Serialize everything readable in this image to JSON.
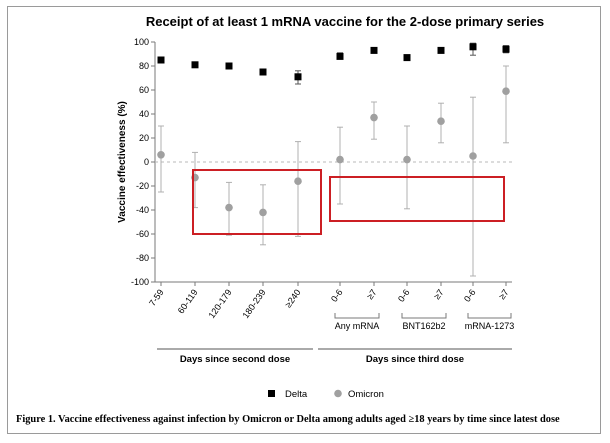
{
  "chart_data": {
    "type": "scatter",
    "title": "Receipt of at least 1 mRNA vaccine for the 2-dose primary series",
    "ylabel": "Vaccine effectiveness (%)",
    "ylim": [
      -100,
      100
    ],
    "yticks": [
      100,
      80,
      60,
      40,
      20,
      0,
      -20,
      -40,
      -60,
      -80,
      -100
    ],
    "grid": false,
    "reference_line_y": 0,
    "categories": [
      "7-59",
      "60-119",
      "120-179",
      "180-239",
      "≥240",
      "0-6",
      "≥7",
      "0-6",
      "≥7",
      "0-6",
      "≥7"
    ],
    "series": [
      {
        "name": "Delta",
        "color": "#000000",
        "marker": "square",
        "values": [
          85,
          81,
          80,
          75,
          71,
          88,
          93,
          87,
          93,
          96,
          94
        ],
        "lower": [
          83,
          79,
          78,
          73,
          65,
          86,
          91,
          85,
          91,
          89,
          91
        ],
        "upper": [
          87,
          83,
          82,
          77,
          76,
          91,
          95,
          89,
          95,
          99,
          97
        ]
      },
      {
        "name": "Omicron",
        "color": "#a0a0a0",
        "marker": "circle",
        "values": [
          6,
          -13,
          -38,
          -42,
          -16,
          2,
          37,
          2,
          34,
          5,
          59
        ],
        "lower": [
          -25,
          -38,
          -61,
          -69,
          -62,
          -35,
          19,
          -39,
          16,
          -95,
          16
        ],
        "upper": [
          30,
          8,
          -17,
          -19,
          17,
          29,
          50,
          30,
          49,
          54,
          80
        ]
      }
    ],
    "groups": [
      "Any mRNA",
      "BNT162b2",
      "mRNA-1273"
    ],
    "sections": [
      "Days since second dose",
      "Days since third dose"
    ],
    "legend_position": "bottom",
    "highlight_color": "#cc1f24"
  },
  "caption": "Figure 1. Vaccine effectiveness against infection by Omicron or Delta among adults aged ≥18 years by time since latest dose"
}
